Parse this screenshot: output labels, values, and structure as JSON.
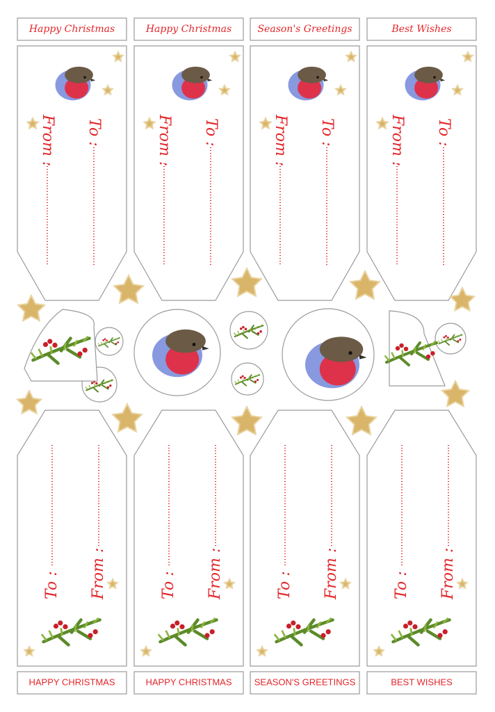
{
  "top_labels": [
    "Happy Christmas",
    "Happy Christmas",
    "Season's Greetings",
    "Best Wishes"
  ],
  "top_tags": [
    {
      "from": "From :",
      "to": "To :"
    },
    {
      "from": "From :",
      "to": "To :"
    },
    {
      "from": "From :",
      "to": "To :"
    },
    {
      "from": "From :",
      "to": "To :"
    }
  ],
  "bottom_tags": [
    {
      "to": "To :",
      "from": "From :"
    },
    {
      "to": "To :",
      "from": "From :"
    },
    {
      "to": "To :",
      "from": "From :"
    },
    {
      "to": "To :",
      "from": "From :"
    }
  ],
  "bottom_labels": [
    "HAPPY CHRISTMAS",
    "HAPPY CHRISTMAS",
    "SEASON'S GREETINGS",
    "BEST WISHES"
  ]
}
